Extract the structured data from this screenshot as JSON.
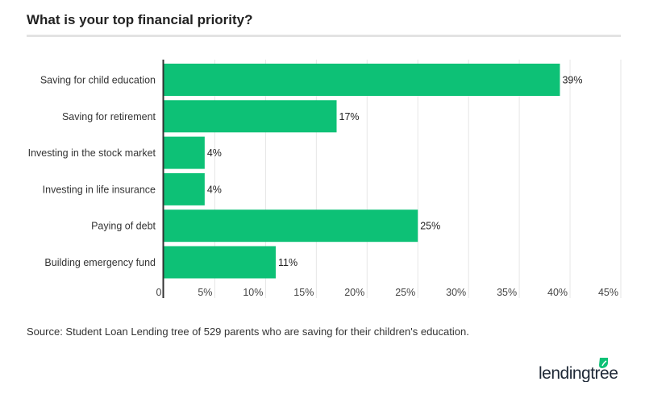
{
  "title": "What is your top financial priority?",
  "source": "Source: Student Loan Lending tree of 529 parents who are saving for their children's education.",
  "logo": "lendingtree",
  "colors": {
    "bar": "#0dc176",
    "grid": "#e6e6e6",
    "axis": "#333333",
    "logo_text": "#1f2937",
    "logo_leaf": "#0dc176"
  },
  "chart_data": {
    "type": "bar",
    "orientation": "horizontal",
    "title": "What is your top financial priority?",
    "categories": [
      "Saving for child education",
      "Saving for retirement",
      "Investing in the stock market",
      "Investing in life insurance",
      "Paying of debt",
      "Building emergency fund"
    ],
    "values": [
      39,
      17,
      4,
      4,
      25,
      11
    ],
    "data_labels": [
      "39%",
      "17%",
      "4%",
      "4%",
      "25%",
      "11%"
    ],
    "xlim": [
      0,
      45
    ],
    "xticks": [
      0,
      5,
      10,
      15,
      20,
      25,
      30,
      35,
      40,
      45
    ],
    "xtick_labels": [
      "0",
      "5%",
      "10%",
      "15%",
      "20%",
      "25%",
      "30%",
      "35%",
      "40%",
      "45%"
    ],
    "grid": true,
    "legend": "none"
  }
}
